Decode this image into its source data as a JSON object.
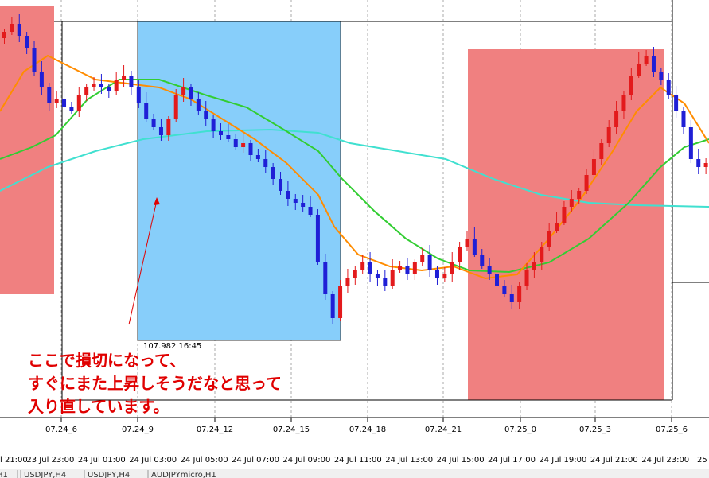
{
  "annotation": {
    "lines": [
      "ここで損切になって、",
      "すぐにまた上昇しそうだなと思って",
      "入り直しています。"
    ]
  },
  "price_label": "107.982 16:45",
  "axis": {
    "top_labels": [
      "07.24_6",
      "07.24_9",
      "07.24_12",
      "07.24_15",
      "07.24_18",
      "07.24_21",
      "07.25_0",
      "07.25_3",
      "07.25_6"
    ],
    "bottom_labels": [
      "l 21:00",
      "23 Jul 23:00",
      "24 Jul 01:00",
      "24 Jul 03:00",
      "24 Jul 05:00",
      "24 Jul 07:00",
      "24 Jul 09:00",
      "24 Jul 11:00",
      "24 Jul 13:00",
      "24 Jul 15:00",
      "24 Jul 17:00",
      "24 Jul 19:00",
      "24 Jul 21:00",
      "24 Jul 23:00",
      "25"
    ]
  },
  "tabs": [
    "H1",
    "USDJPY,H4",
    "USDJPY,H4",
    "AUDJPYmicro,H1"
  ]
}
